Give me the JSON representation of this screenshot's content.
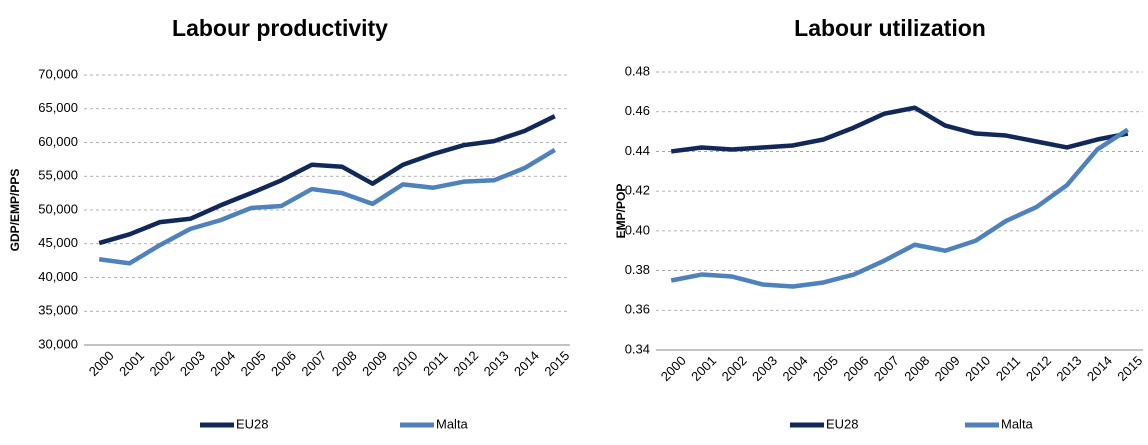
{
  "chart_data": [
    {
      "type": "line",
      "title": "Labour productivity",
      "y_label": "GDP/EMP/PPS",
      "categories": [
        "2000",
        "2001",
        "2002",
        "2003",
        "2004",
        "2005",
        "2006",
        "2007",
        "2008",
        "2009",
        "2010",
        "2011",
        "2012",
        "2013",
        "2014",
        "2015"
      ],
      "series": [
        {
          "name": "EU28",
          "color": "#13285a",
          "values": [
            45100,
            46400,
            48200,
            48700,
            50700,
            52500,
            54400,
            56700,
            56400,
            53900,
            56700,
            58300,
            59600,
            60200,
            61700,
            63900
          ]
        },
        {
          "name": "Malta",
          "color": "#4f81bd",
          "values": [
            42700,
            42100,
            44800,
            47200,
            48500,
            50300,
            50600,
            53100,
            52500,
            50900,
            53800,
            53300,
            54200,
            54400,
            56200,
            58900
          ]
        }
      ],
      "ylim": [
        30000,
        70000
      ],
      "yticks": [
        {
          "value": 30000,
          "label": "30,000"
        },
        {
          "value": 35000,
          "label": "35,000"
        },
        {
          "value": 40000,
          "label": "40,000"
        },
        {
          "value": 45000,
          "label": "45,000"
        },
        {
          "value": 50000,
          "label": "50,000"
        },
        {
          "value": 55000,
          "label": "55,000"
        },
        {
          "value": 60000,
          "label": "60,000"
        },
        {
          "value": 65000,
          "label": "65,000"
        },
        {
          "value": 70000,
          "label": "70,000"
        }
      ],
      "grid": true,
      "legend": "bottom"
    },
    {
      "type": "line",
      "title": "Labour utilization",
      "y_label": "EMP/POP",
      "categories": [
        "2000",
        "2001",
        "2002",
        "2003",
        "2004",
        "2005",
        "2006",
        "2007",
        "2008",
        "2009",
        "2010",
        "2011",
        "2012",
        "2013",
        "2014",
        "2015"
      ],
      "series": [
        {
          "name": "EU28",
          "color": "#13285a",
          "values": [
            0.44,
            0.442,
            0.441,
            0.442,
            0.443,
            0.446,
            0.452,
            0.459,
            0.462,
            0.453,
            0.449,
            0.448,
            0.445,
            0.442,
            0.446,
            0.449
          ]
        },
        {
          "name": "Malta",
          "color": "#4f81bd",
          "values": [
            0.375,
            0.378,
            0.377,
            0.373,
            0.372,
            0.374,
            0.378,
            0.385,
            0.393,
            0.39,
            0.395,
            0.405,
            0.412,
            0.423,
            0.441,
            0.451
          ]
        }
      ],
      "ylim": [
        0.34,
        0.48
      ],
      "yticks": [
        0.34,
        0.36,
        0.38,
        {
          "value": 0.4,
          "label": "0.40"
        },
        0.42,
        0.44,
        0.46,
        0.48
      ],
      "grid": true,
      "legend": "bottom"
    }
  ]
}
